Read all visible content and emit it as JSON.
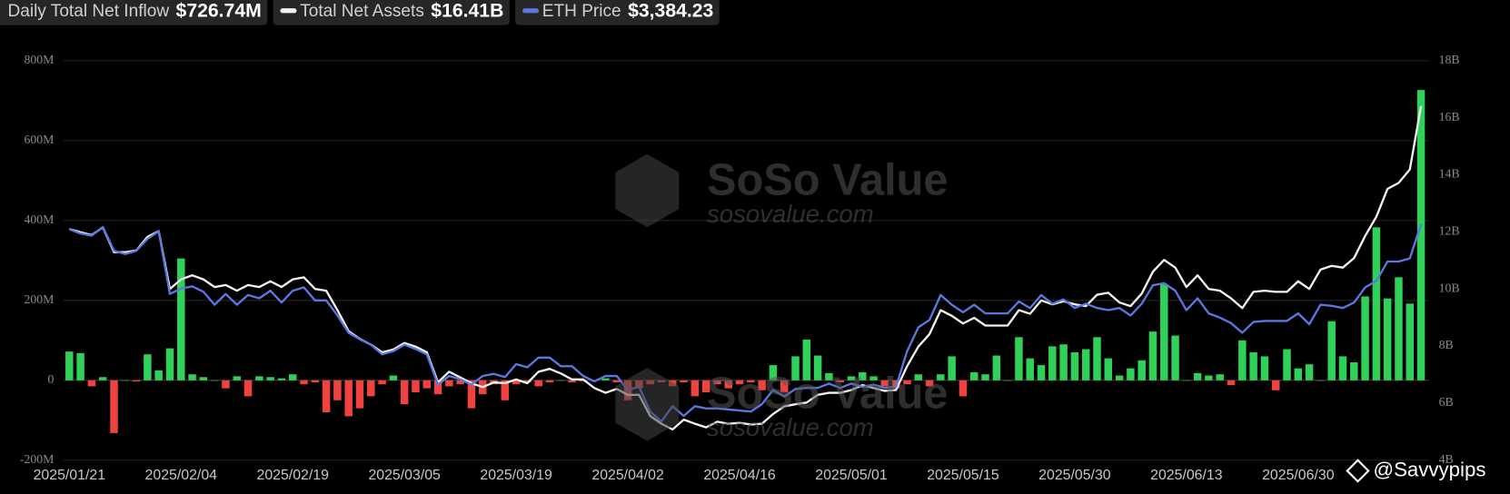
{
  "chart_data": {
    "type": "bar",
    "categories": [
      "2025/01/21",
      null,
      null,
      null,
      null,
      null,
      null,
      null,
      null,
      null,
      "2025/02/04",
      null,
      null,
      null,
      null,
      null,
      null,
      null,
      null,
      null,
      "2025/02/19",
      null,
      null,
      null,
      null,
      null,
      null,
      null,
      null,
      null,
      "2025/03/05",
      null,
      null,
      null,
      null,
      null,
      null,
      null,
      null,
      null,
      "2025/03/19",
      null,
      null,
      null,
      null,
      null,
      null,
      null,
      null,
      null,
      "2025/04/02",
      null,
      null,
      null,
      null,
      null,
      null,
      null,
      null,
      null,
      "2025/04/16",
      null,
      null,
      null,
      null,
      null,
      null,
      null,
      null,
      null,
      "2025/05/01",
      null,
      null,
      null,
      null,
      null,
      null,
      null,
      null,
      null,
      "2025/05/15",
      null,
      null,
      null,
      null,
      null,
      null,
      null,
      null,
      null,
      "2025/05/30",
      null,
      null,
      null,
      null,
      null,
      null,
      null,
      null,
      null,
      "2025/06/13",
      null,
      null,
      null,
      null,
      null,
      null,
      null,
      null,
      null,
      "2025/06/30",
      null,
      null,
      null,
      null,
      null,
      null,
      null,
      null,
      null,
      null,
      null
    ],
    "series": [
      {
        "name": "Daily Total Net Inflow",
        "current_label": "$726.74M",
        "type": "bar",
        "positive_color": "#2fd158",
        "negative_color": "#f0433f",
        "values": [
          72,
          68,
          -15,
          8,
          -132,
          0,
          -3,
          65,
          25,
          80,
          305,
          15,
          8,
          0,
          -20,
          10,
          -40,
          10,
          8,
          5,
          15,
          -10,
          -5,
          -80,
          -50,
          -90,
          -70,
          -40,
          -10,
          12,
          -60,
          -30,
          -20,
          -35,
          -15,
          -10,
          -70,
          -35,
          -10,
          -50,
          -10,
          -5,
          -15,
          -5,
          0,
          -5,
          -3,
          0,
          5,
          -5,
          -50,
          -20,
          -10,
          -5,
          -15,
          -5,
          -40,
          -30,
          -10,
          -20,
          -10,
          -5,
          -25,
          38,
          -30,
          60,
          102,
          62,
          18,
          -5,
          10,
          20,
          10,
          -15,
          -20,
          -10,
          15,
          -15,
          15,
          60,
          -40,
          20,
          15,
          62,
          0,
          108,
          55,
          38,
          85,
          90,
          70,
          78,
          108,
          55,
          12,
          30,
          50,
          122,
          240,
          112,
          0,
          18,
          12,
          15,
          -12,
          100,
          70,
          60,
          -25,
          78,
          30,
          40,
          0,
          148,
          60,
          45,
          210,
          383,
          205,
          258,
          192,
          726.74
        ]
      },
      {
        "name": "Total Net Assets",
        "current_label": "$16.41B",
        "type": "line",
        "axis": "y2",
        "color": "#f2f2f2",
        "values": [
          12.1,
          11.99,
          11.89,
          12.16,
          11.29,
          11.29,
          11.35,
          11.83,
          12.03,
          10.0,
          10.34,
          10.48,
          10.34,
          10.07,
          10.14,
          9.94,
          10.14,
          10.07,
          10.27,
          10.07,
          10.34,
          10.41,
          10.0,
          9.94,
          9.26,
          8.52,
          8.25,
          8.05,
          7.78,
          7.88,
          8.11,
          7.98,
          7.78,
          6.73,
          7.1,
          6.9,
          6.7,
          6.56,
          6.73,
          6.7,
          6.83,
          6.7,
          7.1,
          7.2,
          7.04,
          6.83,
          6.83,
          6.53,
          6.36,
          6.5,
          6.29,
          6.29,
          5.55,
          5.28,
          5.08,
          5.42,
          5.28,
          5.15,
          5.35,
          5.28,
          5.31,
          5.25,
          5.28,
          5.62,
          5.89,
          5.96,
          6.02,
          6.29,
          6.36,
          6.36,
          6.46,
          6.63,
          6.53,
          6.43,
          6.46,
          7.3,
          7.98,
          8.42,
          9.26,
          9.06,
          8.79,
          8.99,
          8.72,
          8.72,
          8.72,
          9.26,
          9.13,
          9.6,
          9.46,
          9.57,
          9.46,
          9.4,
          9.8,
          9.87,
          9.53,
          9.4,
          9.84,
          10.61,
          11.02,
          10.75,
          10.07,
          10.48,
          10.0,
          9.94,
          9.67,
          9.33,
          9.9,
          9.94,
          9.9,
          9.9,
          10.27,
          10.0,
          10.68,
          10.81,
          10.75,
          11.08,
          11.86,
          12.53,
          13.51,
          13.72,
          14.19,
          16.41
        ]
      },
      {
        "name": "ETH Price",
        "current_label": "$3,384.23",
        "type": "line",
        "axis": "y3",
        "color": "#5b78e0",
        "values": [
          3340,
          3300,
          3280,
          3360,
          3140,
          3110,
          3140,
          3250,
          3320,
          2740,
          2790,
          2810,
          2760,
          2640,
          2740,
          2640,
          2730,
          2700,
          2770,
          2660,
          2770,
          2800,
          2680,
          2680,
          2540,
          2380,
          2320,
          2270,
          2180,
          2210,
          2270,
          2230,
          2180,
          1900,
          1980,
          1950,
          1900,
          1980,
          2000,
          1970,
          2090,
          2060,
          2150,
          2150,
          2070,
          2070,
          1980,
          1930,
          1980,
          1980,
          1850,
          1880,
          1650,
          1560,
          1700,
          1610,
          1700,
          1680,
          1680,
          1670,
          1660,
          1650,
          1720,
          1850,
          1790,
          1860,
          1870,
          1870,
          1910,
          1870,
          1910,
          1880,
          1900,
          1870,
          1880,
          2210,
          2430,
          2500,
          2730,
          2640,
          2570,
          2640,
          2560,
          2560,
          2560,
          2670,
          2610,
          2730,
          2650,
          2690,
          2610,
          2650,
          2610,
          2590,
          2610,
          2540,
          2650,
          2820,
          2840,
          2770,
          2590,
          2700,
          2560,
          2520,
          2470,
          2380,
          2480,
          2490,
          2490,
          2490,
          2560,
          2460,
          2640,
          2630,
          2610,
          2660,
          2800,
          2860,
          3040,
          3040,
          3070,
          3384.23
        ]
      }
    ],
    "ylim": [
      -200,
      800
    ],
    "yticks": [
      {
        "value": -200,
        "label": "-200M"
      },
      0,
      {
        "value": 200,
        "label": "200M"
      },
      {
        "value": 400,
        "label": "400M"
      },
      {
        "value": 600,
        "label": "600M"
      },
      {
        "value": 800,
        "label": "800M"
      }
    ],
    "y2lim": [
      4,
      18
    ],
    "y2ticks": [
      {
        "value": 4,
        "label": "4B"
      },
      {
        "value": 6,
        "label": "6B"
      },
      {
        "value": 8,
        "label": "8B"
      },
      {
        "value": 10,
        "label": "10B"
      },
      {
        "value": 12,
        "label": "12B"
      },
      {
        "value": 14,
        "label": "14B"
      },
      {
        "value": 16,
        "label": "16B"
      },
      {
        "value": 18,
        "label": "18B"
      }
    ],
    "y3lim": [
      1200,
      4900
    ],
    "grid": true,
    "watermark": "SoSo Value",
    "watermark_url": "sosovalue.com",
    "credit": "@Savvypips"
  }
}
